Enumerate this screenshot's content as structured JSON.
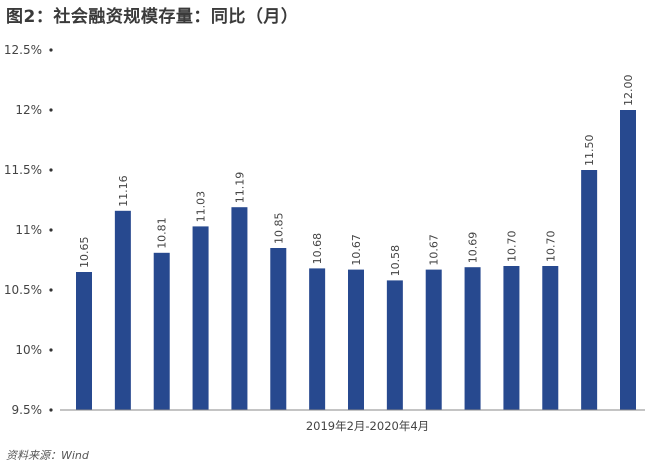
{
  "header": {
    "title": "图2：社会融资规模存量：同比（月）"
  },
  "footer": {
    "source": "资料来源：Wind"
  },
  "colors": {
    "bar": "#27498F",
    "axis": "#888888"
  },
  "chart_data": {
    "type": "bar",
    "title": "图2：社会融资规模存量：同比（月）",
    "xlabel": "2019年2月-2020年4月",
    "ylabel": "",
    "y_ticks": [
      "9.5%",
      "10%",
      "10.5%",
      "11%",
      "11.5%",
      "12%",
      "12.5%"
    ],
    "ylim": [
      9.5,
      12.5
    ],
    "grid": false,
    "values": [
      10.65,
      11.16,
      10.81,
      11.03,
      11.19,
      10.85,
      10.68,
      10.67,
      10.58,
      10.67,
      10.69,
      10.7,
      10.7,
      11.5,
      12.0
    ],
    "value_labels": [
      "10.65",
      "11.16",
      "10.81",
      "11.03",
      "11.19",
      "10.85",
      "10.68",
      "10.67",
      "10.58",
      "10.67",
      "10.69",
      "10.70",
      "10.70",
      "11.50",
      "12.00"
    ]
  }
}
